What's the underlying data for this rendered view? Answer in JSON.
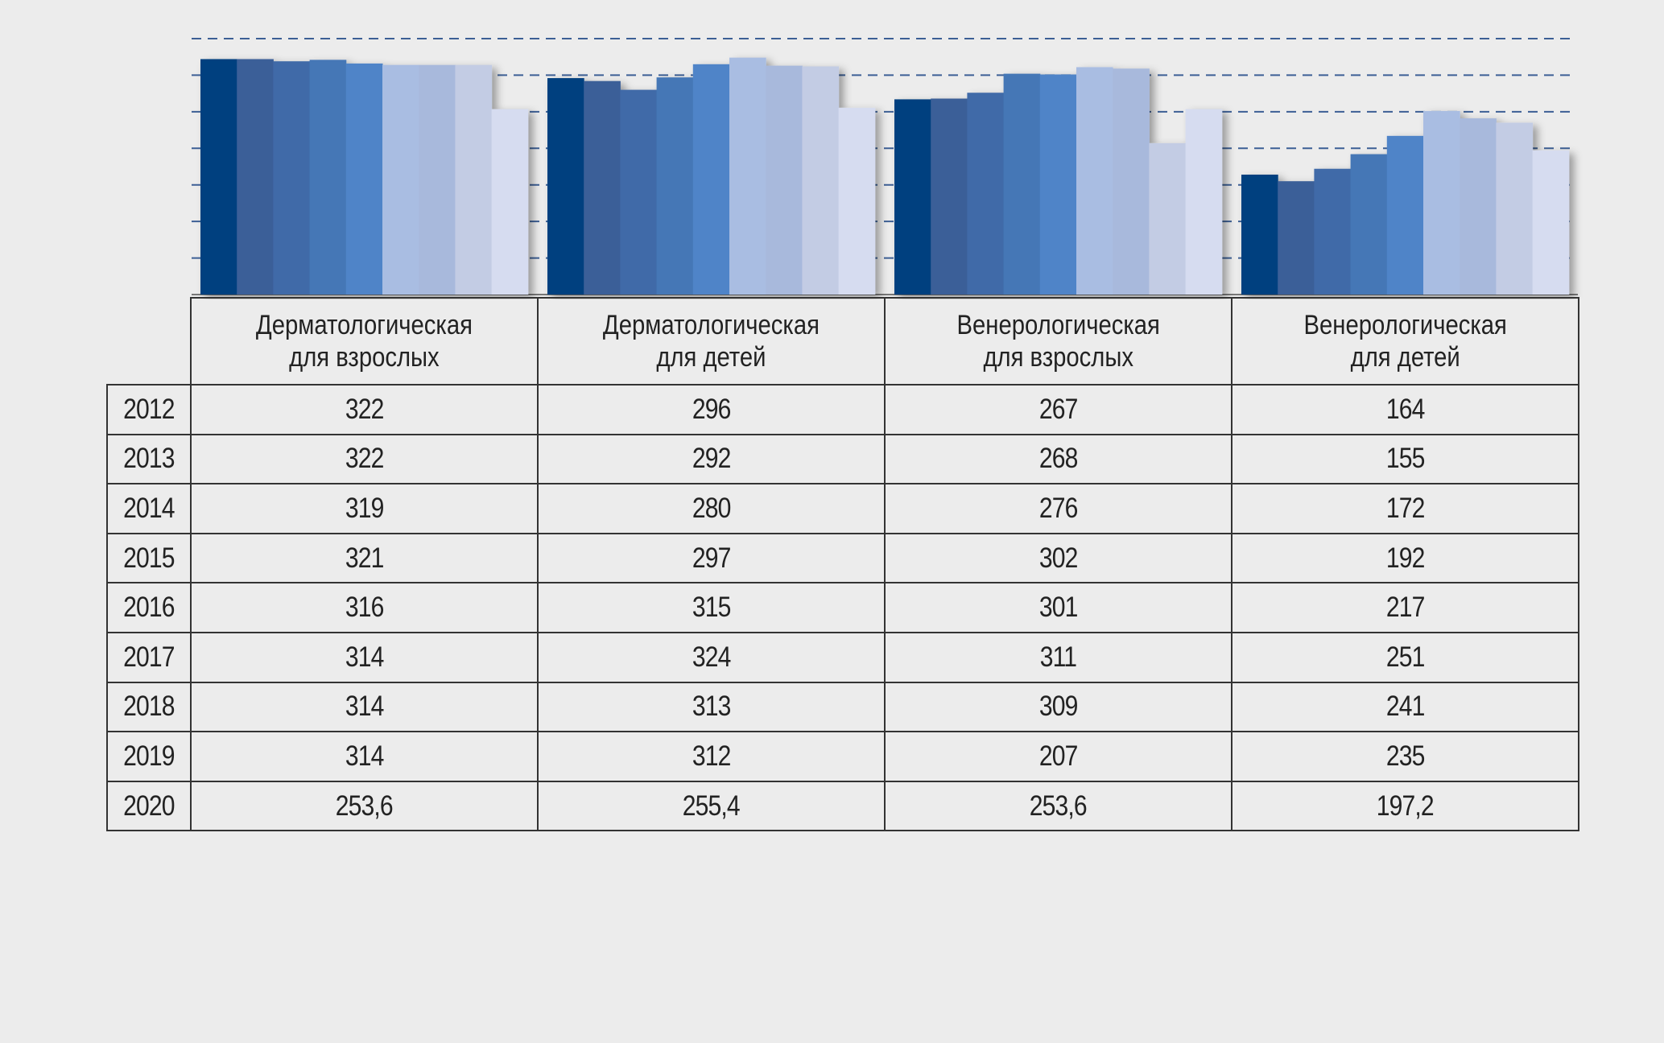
{
  "chart_data": {
    "type": "bar",
    "categories": [
      "Дерматологическая для взрослых",
      "Дерматологическая для детей",
      "Венерологическая для взрослых",
      "Венерологическая для детей"
    ],
    "category_lines": [
      [
        "Дерматологическая",
        "для взрослых"
      ],
      [
        "Дерматологическая",
        "для детей"
      ],
      [
        "Венерологическая",
        "для взрослых"
      ],
      [
        "Венерологическая",
        "для детей"
      ]
    ],
    "series": [
      {
        "name": "2012",
        "values": [
          322,
          296,
          267,
          164
        ],
        "display": [
          "322",
          "296",
          "267",
          "164"
        ],
        "color": "#003f7f"
      },
      {
        "name": "2013",
        "values": [
          322,
          292,
          268,
          155
        ],
        "display": [
          "322",
          "292",
          "268",
          "155"
        ],
        "color": "#3b5f98"
      },
      {
        "name": "2014",
        "values": [
          319,
          280,
          276,
          172
        ],
        "display": [
          "319",
          "280",
          "276",
          "172"
        ],
        "color": "#3f6aa8"
      },
      {
        "name": "2015",
        "values": [
          321,
          297,
          302,
          192
        ],
        "display": [
          "321",
          "297",
          "302",
          "192"
        ],
        "color": "#4577b6"
      },
      {
        "name": "2016",
        "values": [
          316,
          315,
          301,
          217
        ],
        "display": [
          "316",
          "315",
          "301",
          "217"
        ],
        "color": "#4f84c8"
      },
      {
        "name": "2017",
        "values": [
          314,
          324,
          311,
          251
        ],
        "display": [
          "314",
          "324",
          "311",
          "251"
        ],
        "color": "#a9bde2"
      },
      {
        "name": "2018",
        "values": [
          314,
          313,
          309,
          241
        ],
        "display": [
          "314",
          "313",
          "309",
          "241"
        ],
        "color": "#a8b9dc"
      },
      {
        "name": "2019",
        "values": [
          314,
          312,
          207,
          235
        ],
        "display": [
          "314",
          "312",
          "207",
          "235"
        ],
        "color": "#c3cce4"
      },
      {
        "name": "2020",
        "values": [
          253.6,
          255.4,
          253.6,
          197.2
        ],
        "display": [
          "253,6",
          "255,4",
          "253,6",
          "197,2"
        ],
        "color": "#d6dcf0"
      }
    ],
    "ylim": [
      0,
      350
    ],
    "grid": true,
    "grid_step": 50,
    "legend": "table-below"
  }
}
